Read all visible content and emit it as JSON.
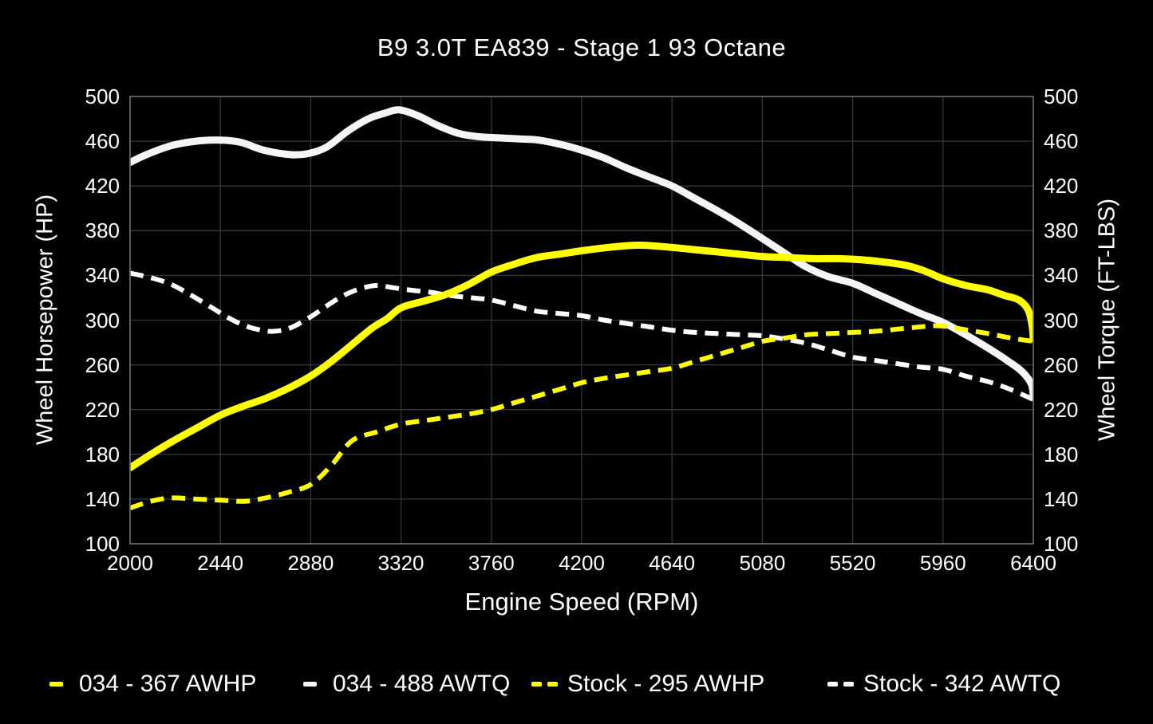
{
  "chart_data": {
    "type": "line",
    "title": "B9 3.0T EA839 - Stage 1 93 Octane",
    "xlabel": "Engine Speed (RPM)",
    "ylabel_left": "Wheel Horsepower (HP)",
    "ylabel_right": "Wheel Torque (FT-LBS)",
    "xlim": [
      2000,
      6400
    ],
    "ylim": [
      100,
      500
    ],
    "x_ticks": [
      2000,
      2440,
      2880,
      3320,
      3760,
      4200,
      4640,
      5080,
      5520,
      5960,
      6400
    ],
    "y_ticks": [
      100,
      140,
      180,
      220,
      260,
      300,
      340,
      380,
      420,
      460,
      500
    ],
    "grid": true,
    "background_color": "#000000",
    "gridline_color": "#383838",
    "border_color": "#6e6e6e",
    "text_color": "#ffffff",
    "legend_position": "bottom",
    "legend": [
      {
        "label": "034 - 367 AWHP",
        "color": "#ffff00",
        "dashed": false
      },
      {
        "label": "034 - 488 AWTQ",
        "color": "#f5f5f5",
        "dashed": false
      },
      {
        "label": "Stock - 295 AWHP",
        "color": "#ffff00",
        "dashed": true
      },
      {
        "label": "Stock - 342 AWTQ",
        "color": "#ffffff",
        "dashed": true
      }
    ],
    "series": [
      {
        "name": "034 - 367 AWHP",
        "role": "modified-horsepower",
        "axis": "left",
        "units": "HP",
        "peak": 367,
        "color": "#ffff00",
        "line": "solid",
        "width": 9,
        "points": [
          [
            2000,
            168
          ],
          [
            2110,
            181
          ],
          [
            2220,
            193
          ],
          [
            2330,
            204
          ],
          [
            2440,
            215
          ],
          [
            2550,
            223
          ],
          [
            2660,
            230
          ],
          [
            2770,
            239
          ],
          [
            2880,
            250
          ],
          [
            2980,
            263
          ],
          [
            3080,
            278
          ],
          [
            3180,
            293
          ],
          [
            3250,
            301
          ],
          [
            3320,
            311
          ],
          [
            3430,
            317
          ],
          [
            3540,
            323
          ],
          [
            3650,
            332
          ],
          [
            3760,
            343
          ],
          [
            3870,
            350
          ],
          [
            3980,
            356
          ],
          [
            4090,
            359
          ],
          [
            4200,
            362
          ],
          [
            4330,
            365
          ],
          [
            4480,
            367
          ],
          [
            4640,
            365
          ],
          [
            4750,
            363
          ],
          [
            4860,
            361
          ],
          [
            4970,
            359
          ],
          [
            5080,
            357
          ],
          [
            5200,
            356
          ],
          [
            5330,
            355
          ],
          [
            5450,
            355
          ],
          [
            5560,
            354
          ],
          [
            5670,
            352
          ],
          [
            5780,
            349
          ],
          [
            5870,
            344
          ],
          [
            5960,
            337
          ],
          [
            6070,
            331
          ],
          [
            6180,
            327
          ],
          [
            6260,
            322
          ],
          [
            6330,
            318
          ],
          [
            6375,
            309
          ],
          [
            6395,
            294
          ],
          [
            6400,
            283
          ]
        ]
      },
      {
        "name": "034 - 488 AWTQ",
        "role": "modified-torque",
        "axis": "right",
        "units": "FT-LBS",
        "peak": 488,
        "color": "#f5f5f5",
        "line": "solid",
        "width": 9,
        "points": [
          [
            2000,
            441
          ],
          [
            2080,
            448
          ],
          [
            2200,
            456
          ],
          [
            2320,
            460
          ],
          [
            2440,
            461
          ],
          [
            2540,
            459
          ],
          [
            2650,
            452
          ],
          [
            2780,
            448
          ],
          [
            2870,
            449
          ],
          [
            2960,
            455
          ],
          [
            3060,
            469
          ],
          [
            3160,
            480
          ],
          [
            3240,
            485
          ],
          [
            3310,
            488
          ],
          [
            3400,
            483
          ],
          [
            3500,
            474
          ],
          [
            3600,
            467
          ],
          [
            3700,
            464
          ],
          [
            3800,
            463
          ],
          [
            3900,
            462
          ],
          [
            3990,
            461
          ],
          [
            4100,
            457
          ],
          [
            4200,
            452
          ],
          [
            4310,
            445
          ],
          [
            4420,
            436
          ],
          [
            4530,
            428
          ],
          [
            4640,
            420
          ],
          [
            4750,
            409
          ],
          [
            4860,
            398
          ],
          [
            4970,
            386
          ],
          [
            5080,
            373
          ],
          [
            5180,
            361
          ],
          [
            5290,
            348
          ],
          [
            5400,
            339
          ],
          [
            5520,
            333
          ],
          [
            5630,
            324
          ],
          [
            5740,
            315
          ],
          [
            5850,
            306
          ],
          [
            5960,
            298
          ],
          [
            6070,
            287
          ],
          [
            6180,
            275
          ],
          [
            6280,
            263
          ],
          [
            6345,
            254
          ],
          [
            6390,
            243
          ],
          [
            6400,
            232
          ]
        ]
      },
      {
        "name": "Stock - 295 AWHP",
        "role": "stock-horsepower",
        "axis": "left",
        "units": "HP",
        "peak": 295,
        "color": "#ffff00",
        "line": "dashed",
        "width": 6,
        "points": [
          [
            2000,
            132
          ],
          [
            2100,
            138
          ],
          [
            2200,
            141
          ],
          [
            2320,
            140
          ],
          [
            2440,
            139
          ],
          [
            2560,
            138
          ],
          [
            2660,
            141
          ],
          [
            2770,
            146
          ],
          [
            2880,
            153
          ],
          [
            2980,
            170
          ],
          [
            3080,
            192
          ],
          [
            3200,
            200
          ],
          [
            3320,
            207
          ],
          [
            3430,
            210
          ],
          [
            3540,
            213
          ],
          [
            3650,
            216
          ],
          [
            3760,
            220
          ],
          [
            3870,
            226
          ],
          [
            3980,
            232
          ],
          [
            4090,
            238
          ],
          [
            4200,
            244
          ],
          [
            4310,
            248
          ],
          [
            4420,
            251
          ],
          [
            4530,
            254
          ],
          [
            4640,
            257
          ],
          [
            4750,
            263
          ],
          [
            4860,
            269
          ],
          [
            4970,
            275
          ],
          [
            5080,
            281
          ],
          [
            5190,
            284
          ],
          [
            5300,
            287
          ],
          [
            5410,
            288
          ],
          [
            5520,
            289
          ],
          [
            5630,
            290
          ],
          [
            5740,
            292
          ],
          [
            5850,
            294
          ],
          [
            5920,
            295
          ],
          [
            5990,
            294
          ],
          [
            6080,
            291
          ],
          [
            6180,
            288
          ],
          [
            6290,
            284
          ],
          [
            6400,
            281
          ]
        ]
      },
      {
        "name": "Stock - 342 AWTQ",
        "role": "stock-torque",
        "axis": "right",
        "units": "FT-LBS",
        "peak": 342,
        "color": "#ffffff",
        "line": "dashed",
        "width": 6,
        "points": [
          [
            2000,
            342
          ],
          [
            2100,
            338
          ],
          [
            2200,
            332
          ],
          [
            2300,
            322
          ],
          [
            2400,
            311
          ],
          [
            2480,
            302
          ],
          [
            2560,
            295
          ],
          [
            2640,
            291
          ],
          [
            2700,
            290
          ],
          [
            2780,
            293
          ],
          [
            2880,
            303
          ],
          [
            2960,
            313
          ],
          [
            3040,
            322
          ],
          [
            3120,
            328
          ],
          [
            3200,
            331
          ],
          [
            3280,
            329
          ],
          [
            3360,
            327
          ],
          [
            3460,
            325
          ],
          [
            3560,
            322
          ],
          [
            3660,
            320
          ],
          [
            3760,
            318
          ],
          [
            3870,
            313
          ],
          [
            3980,
            308
          ],
          [
            4090,
            306
          ],
          [
            4200,
            304
          ],
          [
            4310,
            300
          ],
          [
            4420,
            297
          ],
          [
            4530,
            294
          ],
          [
            4640,
            291
          ],
          [
            4750,
            289
          ],
          [
            4860,
            288
          ],
          [
            4970,
            287
          ],
          [
            5080,
            286
          ],
          [
            5190,
            283
          ],
          [
            5300,
            279
          ],
          [
            5410,
            273
          ],
          [
            5520,
            267
          ],
          [
            5630,
            264
          ],
          [
            5740,
            261
          ],
          [
            5850,
            258
          ],
          [
            5960,
            256
          ],
          [
            6070,
            250
          ],
          [
            6180,
            245
          ],
          [
            6290,
            238
          ],
          [
            6400,
            229
          ]
        ]
      }
    ]
  }
}
